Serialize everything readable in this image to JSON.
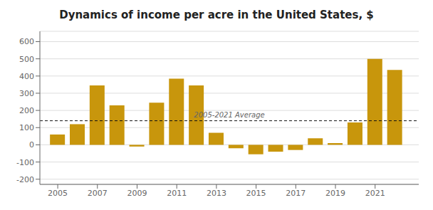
{
  "chart_data": {
    "type": "bar",
    "title": "Dynamics of income per acre in the United States, $",
    "x": [
      2005,
      2006,
      2007,
      2008,
      2009,
      2010,
      2011,
      2012,
      2013,
      2014,
      2015,
      2016,
      2017,
      2018,
      2019,
      2020,
      2021,
      2022
    ],
    "values": [
      60,
      120,
      345,
      230,
      -10,
      245,
      385,
      345,
      70,
      -20,
      -55,
      -40,
      -30,
      38,
      10,
      130,
      500,
      435
    ],
    "color": "#C8960C",
    "xlim": [
      2004.1,
      2023.2
    ],
    "xticks": [
      2005,
      2007,
      2009,
      2011,
      2013,
      2015,
      2017,
      2019,
      2021
    ],
    "ylim": [
      -230,
      660
    ],
    "yticks": [
      -200,
      -100,
      0,
      100,
      200,
      300,
      400,
      500,
      600
    ],
    "grid": true,
    "average": 140,
    "average_label": "2005-2021 Average"
  }
}
